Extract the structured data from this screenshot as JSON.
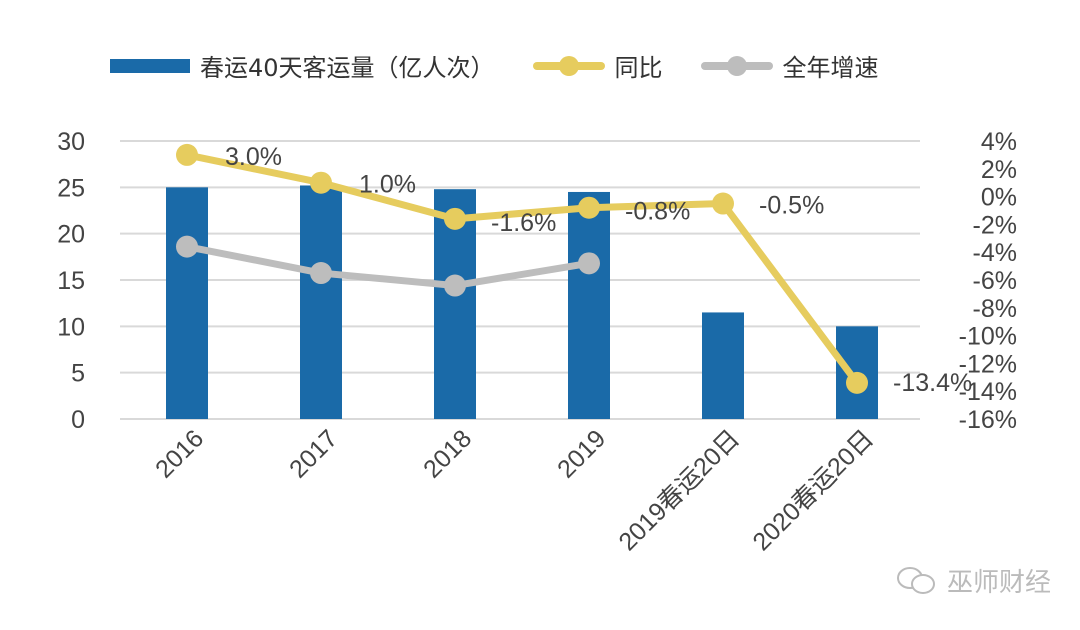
{
  "chart_data": {
    "type": "bar+line",
    "categories": [
      "2016",
      "2017",
      "2018",
      "2019",
      "2019春运20日",
      "2020春运20日"
    ],
    "series": [
      {
        "name": "春运40天客运量（亿人次）",
        "type": "bar",
        "axis": "left",
        "color": "#1a6aa8",
        "values": [
          25.0,
          25.2,
          24.8,
          24.5,
          11.5,
          10.0
        ]
      },
      {
        "name": "同比",
        "type": "line",
        "axis": "right",
        "color": "#e6cc5e",
        "values": [
          3.0,
          1.0,
          -1.6,
          -0.8,
          -0.5,
          -13.4
        ],
        "labels": [
          "3.0%",
          "1.0%",
          "-1.6%",
          "-0.8%",
          "-0.5%",
          "-13.4%"
        ]
      },
      {
        "name": "全年增速",
        "type": "line",
        "axis": "right",
        "color": "#bdbdbd",
        "values": [
          -3.6,
          -5.5,
          -6.4,
          -4.8,
          null,
          null
        ]
      }
    ],
    "left_axis": {
      "ylim": [
        0,
        30
      ],
      "ticks": [
        "0",
        "5",
        "10",
        "15",
        "20",
        "25",
        "30"
      ]
    },
    "right_axis": {
      "ylim": [
        -16,
        4
      ],
      "ticks": [
        "-16%",
        "-14%",
        "-12%",
        "-10%",
        "-8%",
        "-6%",
        "-4%",
        "-2%",
        "0%",
        "2%",
        "4%"
      ]
    },
    "grid": true,
    "legend": "top"
  },
  "watermark": "巫师财经"
}
